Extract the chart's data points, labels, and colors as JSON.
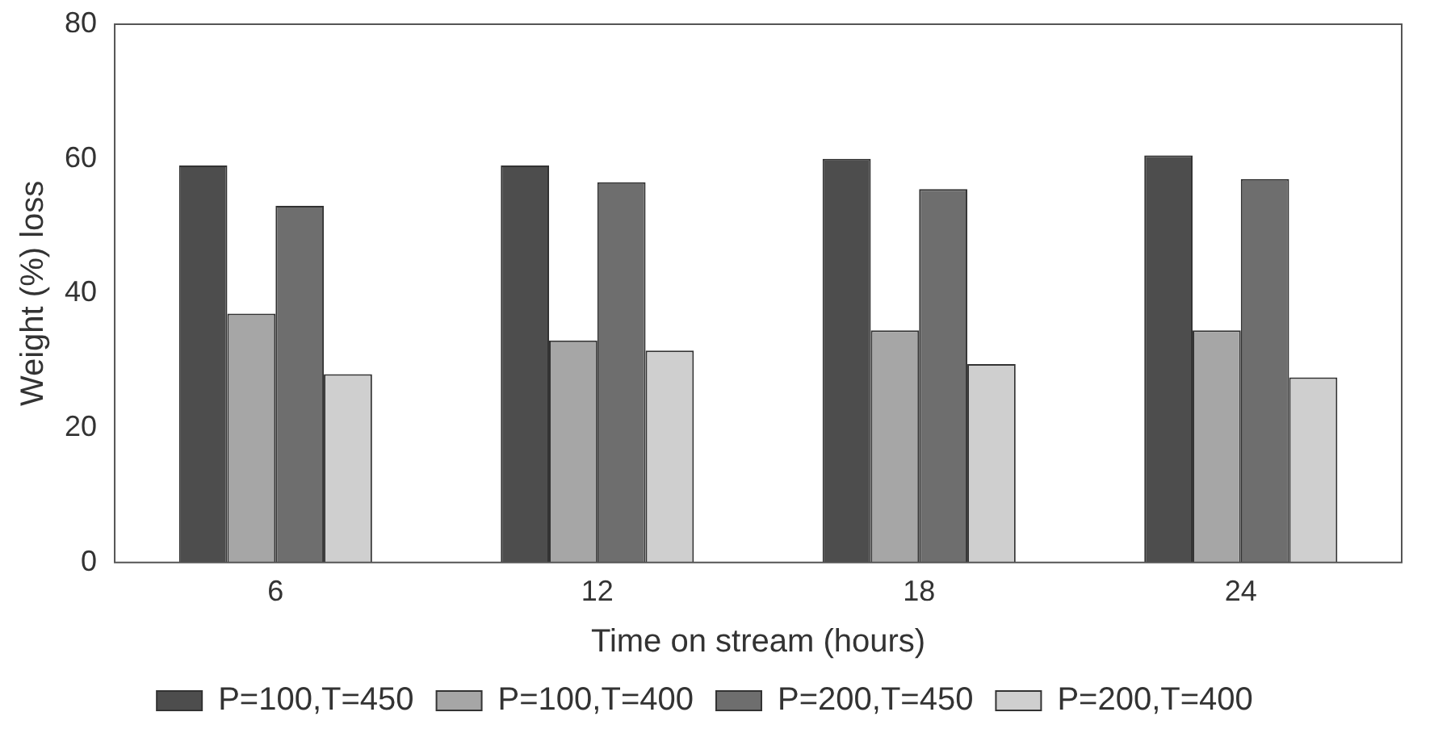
{
  "chart_data": {
    "type": "bar",
    "xlabel": "Time on stream (hours)",
    "ylabel": "Weight (%) loss",
    "categories": [
      "6",
      "12",
      "18",
      "24"
    ],
    "series": [
      {
        "name": "P=100,T=450",
        "color": "#4d4d4d",
        "values": [
          59,
          59,
          60,
          60.5
        ]
      },
      {
        "name": "P=100,T=400",
        "color": "#a6a6a6",
        "values": [
          37,
          33,
          34.5,
          34.5
        ]
      },
      {
        "name": "P=200,T=450",
        "color": "#6e6e6e",
        "values": [
          53,
          56.5,
          55.5,
          57
        ]
      },
      {
        "name": "P=200,T=400",
        "color": "#cfcfcf",
        "values": [
          28,
          31.5,
          29.5,
          27.5
        ]
      }
    ],
    "ylim": [
      0,
      80
    ],
    "yticks": [
      0,
      20,
      40,
      60,
      80
    ],
    "grid": false,
    "legend": "bottom"
  }
}
